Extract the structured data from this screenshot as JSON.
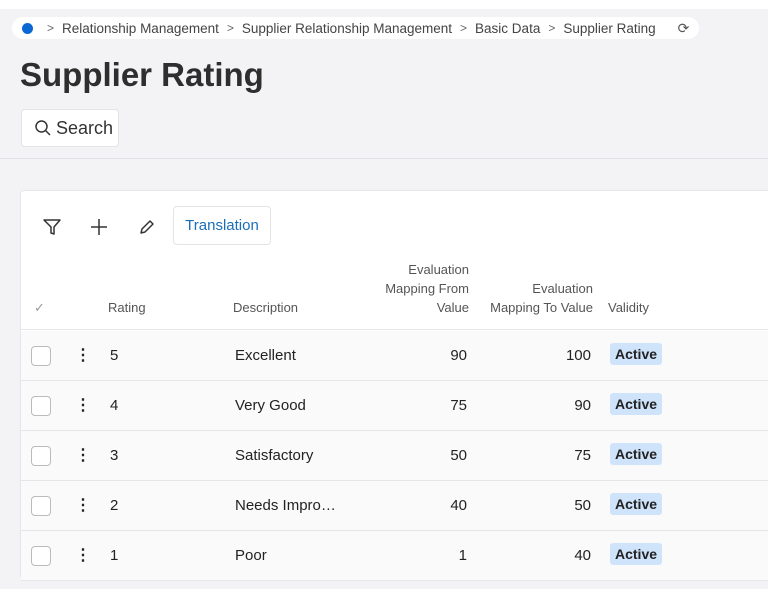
{
  "breadcrumb": [
    "Relationship Management",
    "Supplier Relationship Management",
    "Basic Data",
    "Supplier Rating"
  ],
  "page_title": "Supplier Rating",
  "search_label": "Search",
  "toolbar": {
    "translation_label": "Translation"
  },
  "columns": {
    "rating": "Rating",
    "description": "Description",
    "from": "Evaluation Mapping From Value",
    "to": "Evaluation Mapping To Value",
    "validity": "Validity"
  },
  "rows": [
    {
      "rating": "5",
      "description": "Excellent",
      "from": "90",
      "to": "100",
      "validity": "Active"
    },
    {
      "rating": "4",
      "description": "Very Good",
      "from": "75",
      "to": "90",
      "validity": "Active"
    },
    {
      "rating": "3",
      "description": "Satisfactory",
      "from": "50",
      "to": "75",
      "validity": "Active"
    },
    {
      "rating": "2",
      "description": "Needs Impro…",
      "from": "40",
      "to": "50",
      "validity": "Active"
    },
    {
      "rating": "1",
      "description": "Poor",
      "from": "1",
      "to": "40",
      "validity": "Active"
    }
  ],
  "colors": {
    "accent": "#0a68d4",
    "badge": "#cfe3fb",
    "link": "#1b6fb8"
  }
}
